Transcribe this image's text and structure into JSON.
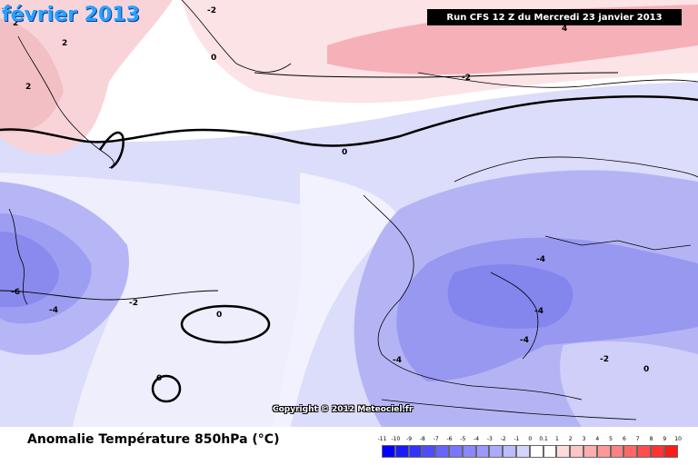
{
  "header": {
    "month_title": "février 2013",
    "run_info": "Run CFS 12 Z du Mercredi 23 janvier 2013"
  },
  "map": {
    "contour_labels": [
      "0",
      "0",
      "0",
      "0",
      "0",
      "-2",
      "-2",
      "-2",
      "-2",
      "-4",
      "-4",
      "-4",
      "-4",
      "-4",
      "-6",
      "2",
      "2",
      "2",
      "-2",
      "4"
    ],
    "copyright": "Copyright © 2012 Meteociel.fr"
  },
  "footer": {
    "variable_label": "Anomalie Température 850hPa (°C)"
  },
  "legend": {
    "labels": [
      "-11",
      "-10",
      "-9",
      "-8",
      "-7",
      "-6",
      "-5",
      "-4",
      "-3",
      "-2",
      "-1",
      "0",
      "0.1",
      "1",
      "2",
      "3",
      "4",
      "5",
      "6",
      "7",
      "8",
      "9",
      "10"
    ],
    "colors": [
      "#0000ff",
      "#1a1aff",
      "#3333ff",
      "#4d4dff",
      "#6666ff",
      "#7777ff",
      "#8888ff",
      "#9999ff",
      "#aaaaff",
      "#bbbbff",
      "#d4d4ff",
      "#ffffff",
      "#ffffff",
      "#ffdada",
      "#ffc4c4",
      "#ffaeae",
      "#ff9898",
      "#ff8080",
      "#ff6666",
      "#ff4d4d",
      "#ff3333",
      "#ff1a1a",
      "#ff0000"
    ]
  }
}
